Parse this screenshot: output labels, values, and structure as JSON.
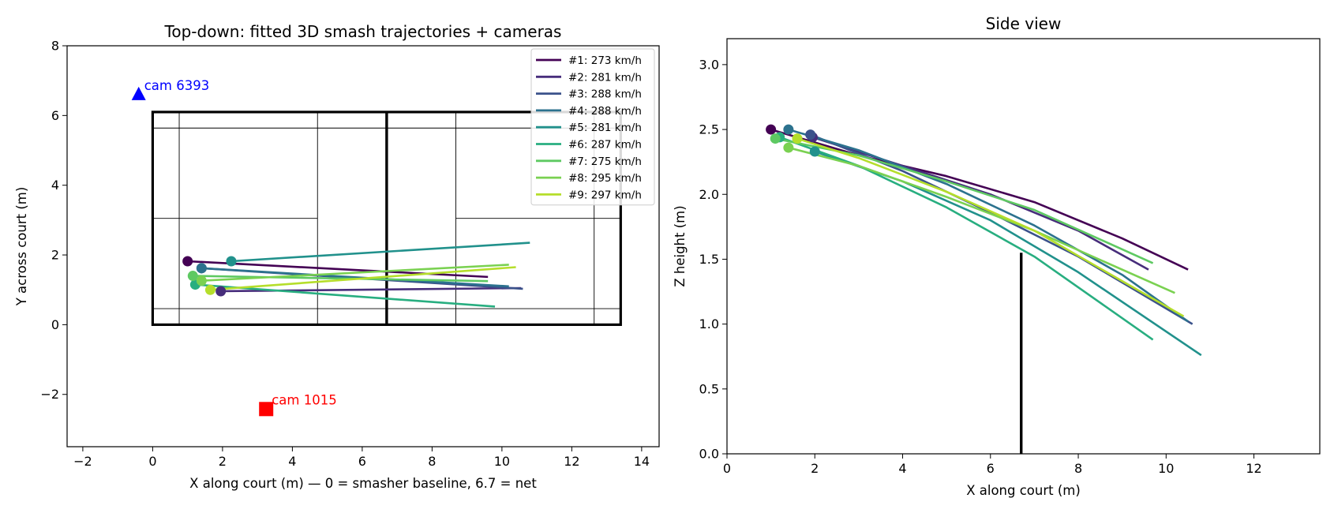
{
  "chart_data": [
    {
      "type": "line",
      "title": "Top-down: fitted 3D smash trajectories + cameras",
      "xlabel": "X along court (m) — 0 = smasher baseline, 6.7 = net",
      "ylabel": "Y across court (m)",
      "xlim": [
        -2.45,
        14.5
      ],
      "ylim": [
        -3.5,
        8
      ],
      "xticks": [
        -2,
        0,
        2,
        4,
        6,
        8,
        10,
        12,
        14
      ],
      "yticks": [
        -2,
        0,
        2,
        4,
        6,
        8
      ],
      "legend_position": "upper right",
      "court": {
        "length": 13.4,
        "width": 6.1,
        "net_x": 6.7,
        "lines_x": [
          0.76,
          4.72,
          8.68,
          12.64
        ],
        "lines_y": [
          0.46,
          5.64
        ],
        "center_y": 3.05
      },
      "cameras": [
        {
          "label": "cam 6393",
          "x": -0.4,
          "y": 6.6,
          "marker": "triangle",
          "color": "#0000ff"
        },
        {
          "label": "cam 1015",
          "x": 3.25,
          "y": -2.42,
          "marker": "square",
          "color": "#ff0000"
        }
      ],
      "series": [
        {
          "name": "#1: 273 km/h",
          "color": "#440154",
          "start": [
            1.0,
            1.82
          ],
          "end": [
            9.6,
            1.37
          ]
        },
        {
          "name": "#2: 281 km/h",
          "color": "#472d7b",
          "start": [
            1.95,
            0.96
          ],
          "end": [
            10.55,
            1.05
          ]
        },
        {
          "name": "#3: 288 km/h",
          "color": "#3b528b",
          "start": [
            1.4,
            1.62
          ],
          "end": [
            10.6,
            1.03
          ]
        },
        {
          "name": "#4: 288 km/h",
          "color": "#2c728e",
          "start": [
            1.4,
            1.62
          ],
          "end": [
            10.2,
            1.1
          ]
        },
        {
          "name": "#5: 281 km/h",
          "color": "#21918c",
          "start": [
            2.25,
            1.82
          ],
          "end": [
            10.8,
            2.35
          ]
        },
        {
          "name": "#6: 287 km/h",
          "color": "#28ae80",
          "start": [
            1.22,
            1.15
          ],
          "end": [
            9.8,
            0.52
          ]
        },
        {
          "name": "#7: 275 km/h",
          "color": "#5ec962",
          "start": [
            1.15,
            1.4
          ],
          "end": [
            9.6,
            1.25
          ]
        },
        {
          "name": "#8: 295 km/h",
          "color": "#7ad151",
          "start": [
            1.4,
            1.26
          ],
          "end": [
            10.2,
            1.72
          ]
        },
        {
          "name": "#9: 297 km/h",
          "color": "#b5de2b",
          "start": [
            1.65,
            1.0
          ],
          "end": [
            10.4,
            1.65
          ]
        }
      ]
    },
    {
      "type": "line",
      "title": "Side view",
      "xlabel": "X along court (m)",
      "ylabel": "Z height (m)",
      "xlim": [
        0,
        13.5
      ],
      "ylim": [
        0,
        3.2
      ],
      "xticks": [
        0,
        2,
        4,
        6,
        8,
        10,
        12
      ],
      "yticks": [
        0.0,
        0.5,
        1.0,
        1.5,
        2.0,
        2.5,
        3.0
      ],
      "net": {
        "x": 6.7,
        "height": 1.55
      },
      "series": [
        {
          "name": "#1",
          "color": "#440154",
          "x": [
            1.0,
            3.0,
            5.0,
            7.0,
            9.0,
            10.5
          ],
          "z": [
            2.5,
            2.3,
            2.14,
            1.94,
            1.66,
            1.42
          ]
        },
        {
          "name": "#2",
          "color": "#472d7b",
          "x": [
            1.95,
            4.0,
            6.0,
            8.0,
            9.6
          ],
          "z": [
            2.44,
            2.22,
            2.0,
            1.72,
            1.42
          ]
        },
        {
          "name": "#3",
          "color": "#3b528b",
          "x": [
            1.9,
            4.0,
            6.0,
            8.0,
            10.6
          ],
          "z": [
            2.46,
            2.18,
            1.86,
            1.52,
            1.0
          ]
        },
        {
          "name": "#4",
          "color": "#2c728e",
          "x": [
            1.4,
            3.0,
            5.0,
            7.0,
            9.0,
            10.5
          ],
          "z": [
            2.5,
            2.34,
            2.08,
            1.76,
            1.38,
            1.02
          ]
        },
        {
          "name": "#5",
          "color": "#21918c",
          "x": [
            2.0,
            4.0,
            6.0,
            8.0,
            10.8
          ],
          "z": [
            2.33,
            2.1,
            1.8,
            1.4,
            0.76
          ]
        },
        {
          "name": "#6",
          "color": "#28ae80",
          "x": [
            1.2,
            3.0,
            5.0,
            7.0,
            9.7
          ],
          "z": [
            2.44,
            2.22,
            1.9,
            1.52,
            0.88
          ]
        },
        {
          "name": "#7",
          "color": "#5ec962",
          "x": [
            1.1,
            3.0,
            5.0,
            7.0,
            9.7
          ],
          "z": [
            2.43,
            2.3,
            2.1,
            1.88,
            1.47
          ]
        },
        {
          "name": "#8",
          "color": "#7ad151",
          "x": [
            1.4,
            3.0,
            5.0,
            7.0,
            10.2
          ],
          "z": [
            2.36,
            2.22,
            1.98,
            1.72,
            1.24
          ]
        },
        {
          "name": "#9",
          "color": "#b5de2b",
          "x": [
            1.6,
            3.0,
            5.0,
            7.0,
            10.4
          ],
          "z": [
            2.43,
            2.28,
            2.02,
            1.72,
            1.06
          ]
        }
      ]
    }
  ]
}
